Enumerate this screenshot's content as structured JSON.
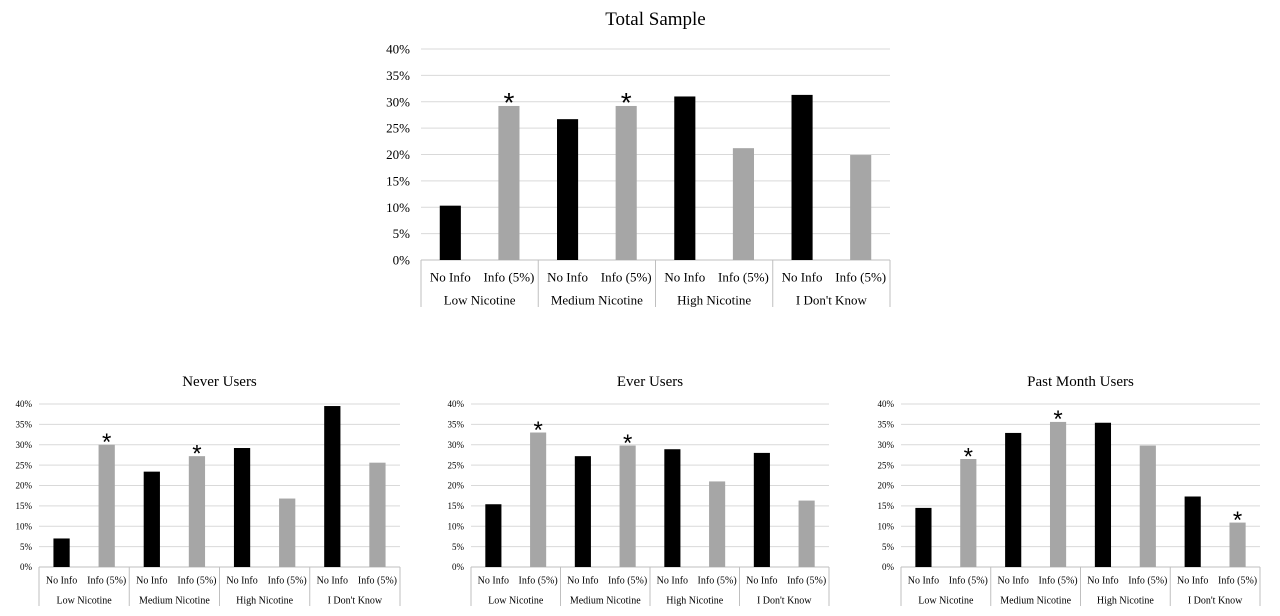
{
  "chart_data": [
    {
      "type": "bar",
      "title": "Total Sample",
      "groups": [
        "Low Nicotine",
        "Medium Nicotine",
        "High Nicotine",
        "I Don't Know"
      ],
      "categories": [
        "No Info",
        "Info (5%)",
        "No Info",
        "Info (5%)",
        "No Info",
        "Info (5%)",
        "No Info",
        "Info (5%)"
      ],
      "values": [
        10.3,
        29.2,
        26.7,
        29.2,
        31.0,
        21.2,
        31.3,
        19.9
      ],
      "significant": [
        false,
        true,
        false,
        true,
        false,
        false,
        false,
        false
      ],
      "significance_marker": "*",
      "colors": [
        "#000000",
        "#a6a6a6",
        "#000000",
        "#a6a6a6",
        "#000000",
        "#a6a6a6",
        "#000000",
        "#a6a6a6"
      ],
      "yticks": [
        "0%",
        "5%",
        "10%",
        "15%",
        "20%",
        "25%",
        "30%",
        "35%",
        "40%"
      ],
      "ylim": [
        0,
        40
      ],
      "grid": true,
      "xlabel": "",
      "ylabel": ""
    },
    {
      "type": "bar",
      "title": "Never Users",
      "groups": [
        "Low Nicotine",
        "Medium Nicotine",
        "High Nicotine",
        "I Don't Know"
      ],
      "categories": [
        "No Info",
        "Info (5%)",
        "No Info",
        "Info (5%)",
        "No Info",
        "Info (5%)",
        "No Info",
        "Info (5%)"
      ],
      "values": [
        7.0,
        30.0,
        23.4,
        27.2,
        29.2,
        16.8,
        39.5,
        25.6
      ],
      "significant": [
        false,
        true,
        false,
        true,
        false,
        false,
        false,
        false
      ],
      "significance_marker": "*",
      "colors": [
        "#000000",
        "#a6a6a6",
        "#000000",
        "#a6a6a6",
        "#000000",
        "#a6a6a6",
        "#000000",
        "#a6a6a6"
      ],
      "yticks": [
        "0%",
        "5%",
        "10%",
        "15%",
        "20%",
        "25%",
        "30%",
        "35%",
        "40%"
      ],
      "ylim": [
        0,
        40
      ],
      "grid": true,
      "xlabel": "",
      "ylabel": ""
    },
    {
      "type": "bar",
      "title": "Ever Users",
      "groups": [
        "Low Nicotine",
        "Medium Nicotine",
        "High Nicotine",
        "I Don't Know"
      ],
      "categories": [
        "No Info",
        "Info (5%)",
        "No Info",
        "Info (5%)",
        "No Info",
        "Info (5%)",
        "No Info",
        "Info (5%)"
      ],
      "values": [
        15.4,
        33.0,
        27.2,
        29.8,
        28.9,
        21.0,
        28.0,
        16.3
      ],
      "significant": [
        false,
        true,
        false,
        true,
        false,
        false,
        false,
        false
      ],
      "significance_marker": "*",
      "colors": [
        "#000000",
        "#a6a6a6",
        "#000000",
        "#a6a6a6",
        "#000000",
        "#a6a6a6",
        "#000000",
        "#a6a6a6"
      ],
      "yticks": [
        "0%",
        "5%",
        "10%",
        "15%",
        "20%",
        "25%",
        "30%",
        "35%",
        "40%"
      ],
      "ylim": [
        0,
        40
      ],
      "grid": true,
      "xlabel": "",
      "ylabel": ""
    },
    {
      "type": "bar",
      "title": "Past Month Users",
      "groups": [
        "Low Nicotine",
        "Medium Nicotine",
        "High Nicotine",
        "I Don't Know"
      ],
      "categories": [
        "No Info",
        "Info (5%)",
        "No Info",
        "Info (5%)",
        "No Info",
        "Info (5%)",
        "No Info",
        "Info (5%)"
      ],
      "values": [
        14.5,
        26.5,
        32.9,
        35.6,
        35.4,
        29.8,
        17.3,
        10.9
      ],
      "significant": [
        false,
        true,
        false,
        true,
        false,
        false,
        false,
        true
      ],
      "significance_marker": "*",
      "colors": [
        "#000000",
        "#a6a6a6",
        "#000000",
        "#a6a6a6",
        "#000000",
        "#a6a6a6",
        "#000000",
        "#a6a6a6"
      ],
      "yticks": [
        "0%",
        "5%",
        "10%",
        "15%",
        "20%",
        "25%",
        "30%",
        "35%",
        "40%"
      ],
      "ylim": [
        0,
        40
      ],
      "grid": true,
      "xlabel": "",
      "ylabel": ""
    }
  ]
}
